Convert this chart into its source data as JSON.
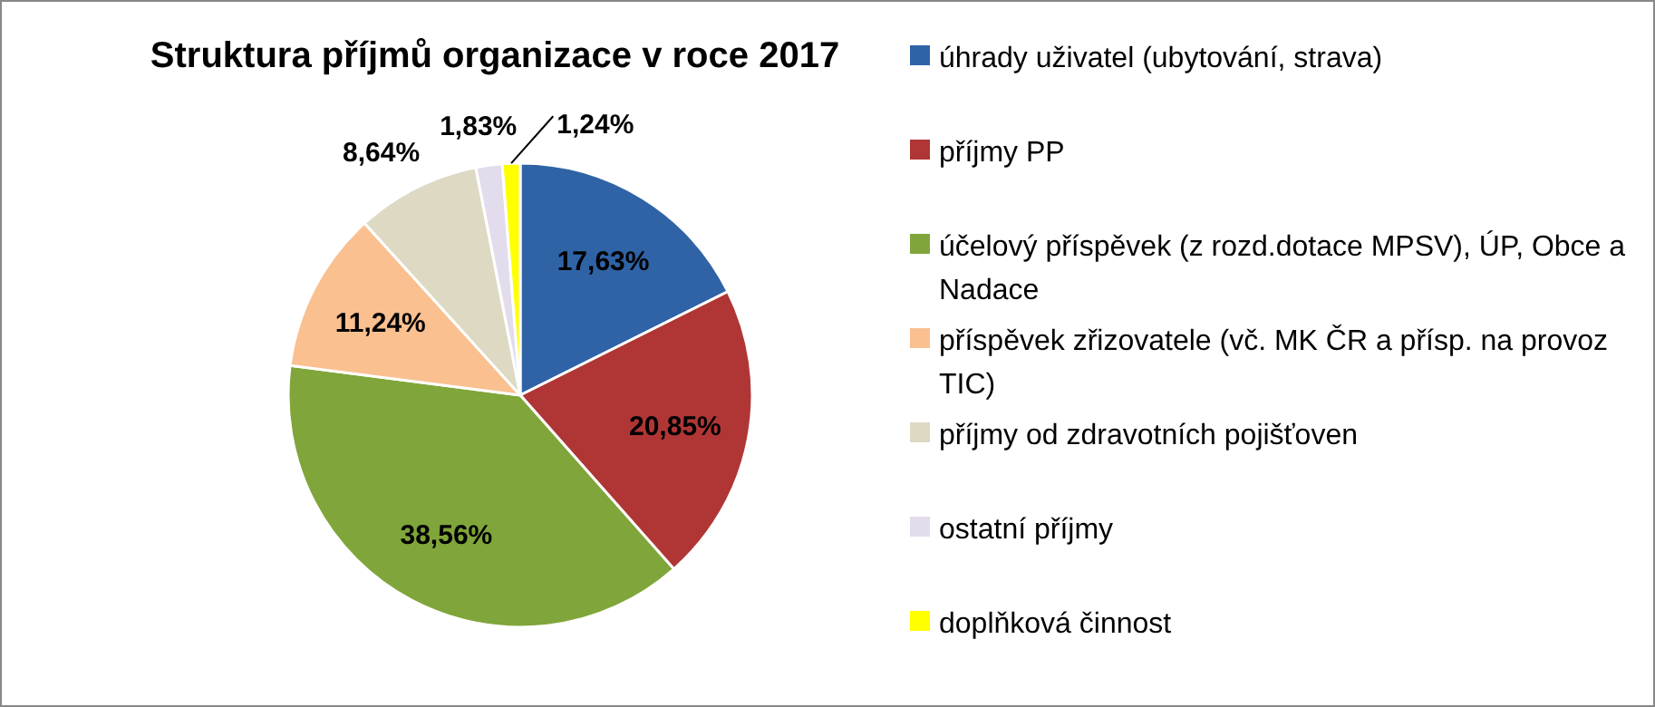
{
  "chart_data": {
    "type": "pie",
    "title": "Struktura příjmů  organizace v roce 2017",
    "categories": [
      "úhrady uživatel (ubytování, strava)",
      "příjmy PP",
      "účelový příspěvek (z rozd.dotace MPSV), ÚP, Obce a Nadace",
      "příspěvek zřizovatele (vč. MK ČR a přísp. na provoz TIC)",
      "příjmy od zdravotních pojišťoven",
      "ostatní příjmy",
      "doplňková činnost"
    ],
    "values": [
      17.63,
      20.85,
      38.56,
      11.24,
      8.64,
      1.83,
      1.24
    ],
    "value_labels": [
      "17,63%",
      "20,85%",
      "38,56%",
      "11,24%",
      "8,64%",
      "1,83%",
      "1,24%"
    ],
    "colors": [
      "#2f63a6",
      "#b03636",
      "#80a53a",
      "#fac090",
      "#ddd9c3",
      "#e2dced",
      "#ffff00"
    ],
    "legend": "right"
  }
}
